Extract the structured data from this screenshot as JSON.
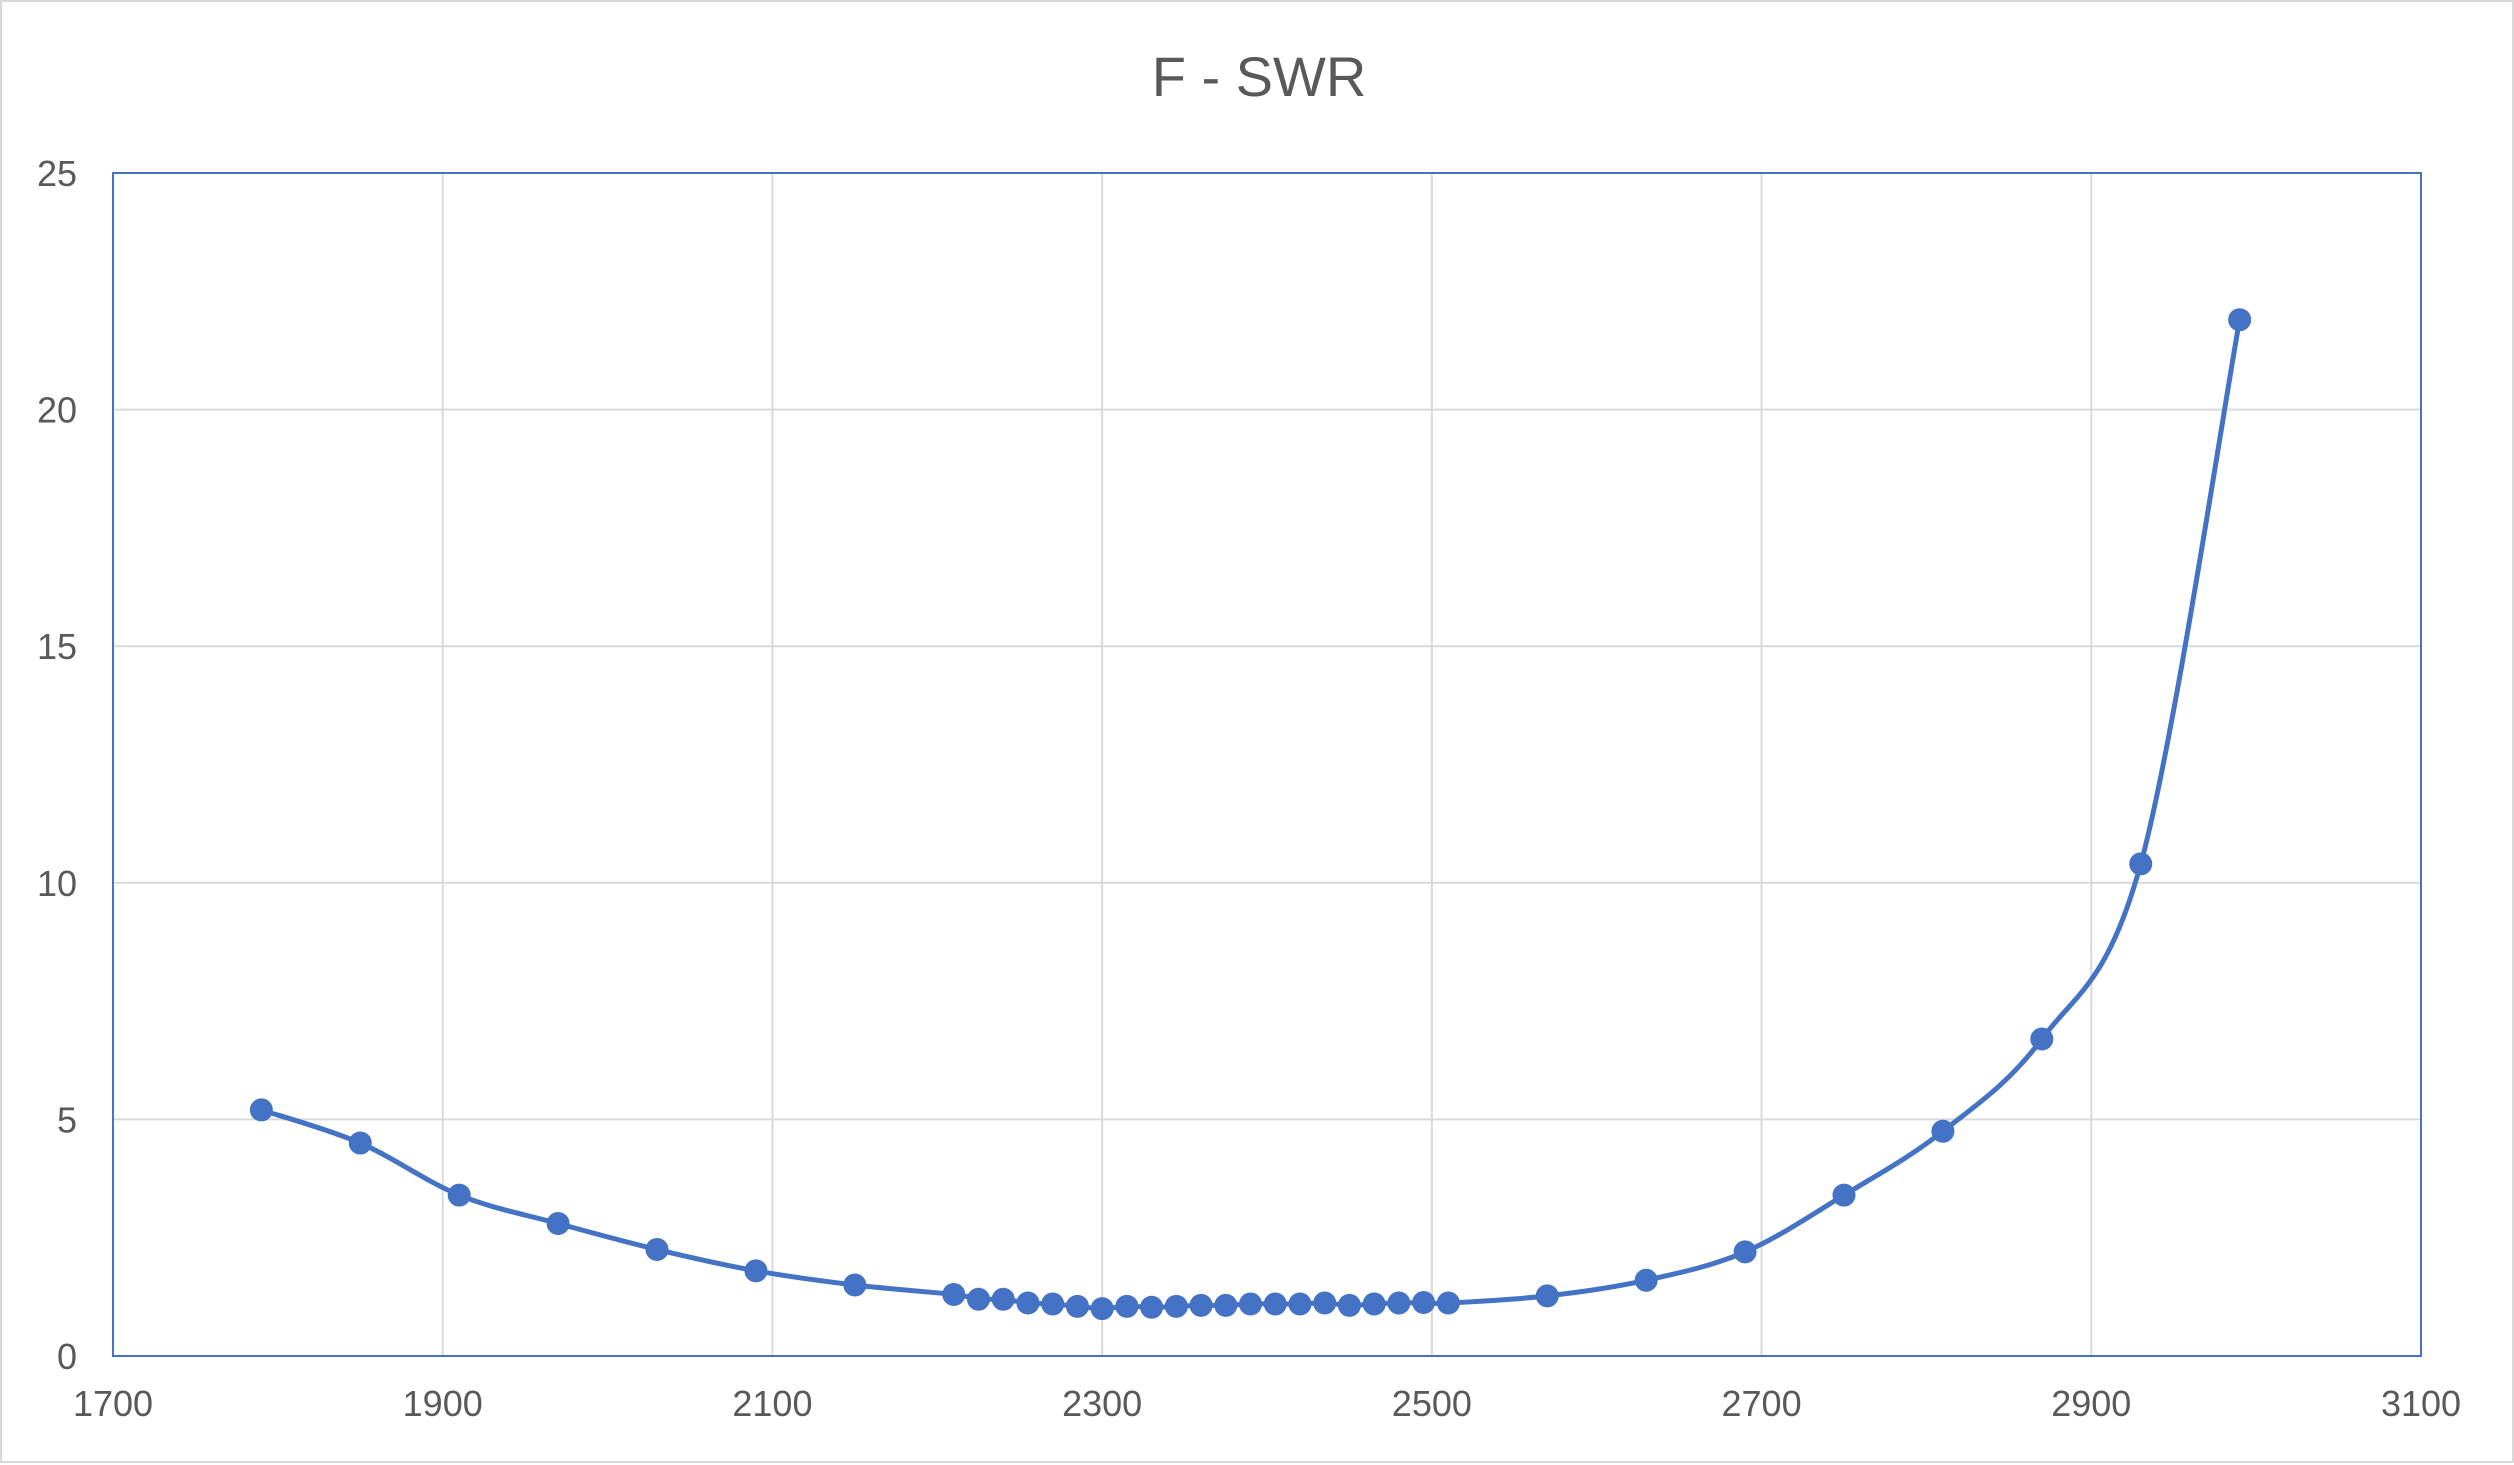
{
  "chart_data": {
    "type": "scatter",
    "title": "F - SWR",
    "xlabel": "",
    "ylabel": "",
    "xlim": [
      1700,
      3100
    ],
    "ylim": [
      0,
      25
    ],
    "x_ticks": [
      1700,
      1900,
      2100,
      2300,
      2500,
      2700,
      2900,
      3100
    ],
    "y_ticks": [
      0,
      5,
      10,
      15,
      20,
      25
    ],
    "grid": true,
    "legend": "none",
    "smooth_line": true,
    "colors": {
      "series": "#4472c4",
      "grid": "#d9d9d9",
      "axis_text": "#595959",
      "border": "#4472c4"
    },
    "series": [
      {
        "x": [
          1790,
          1850,
          1910,
          1970,
          2030,
          2090,
          2150,
          2210,
          2225,
          2240,
          2255,
          2270,
          2285,
          2300,
          2315,
          2330,
          2345,
          2360,
          2375,
          2390,
          2405,
          2420,
          2435,
          2450,
          2465,
          2480,
          2495,
          2510,
          2570,
          2630,
          2690,
          2750,
          2810,
          2870,
          2930,
          2990
        ],
        "y": [
          5.2,
          4.5,
          3.4,
          2.8,
          2.25,
          1.8,
          1.5,
          1.3,
          1.2,
          1.2,
          1.12,
          1.1,
          1.05,
          1.0,
          1.05,
          1.03,
          1.05,
          1.07,
          1.07,
          1.1,
          1.1,
          1.1,
          1.12,
          1.07,
          1.1,
          1.12,
          1.13,
          1.12,
          1.27,
          1.6,
          2.2,
          3.4,
          4.75,
          6.7,
          10.4,
          21.9
        ]
      }
    ]
  }
}
